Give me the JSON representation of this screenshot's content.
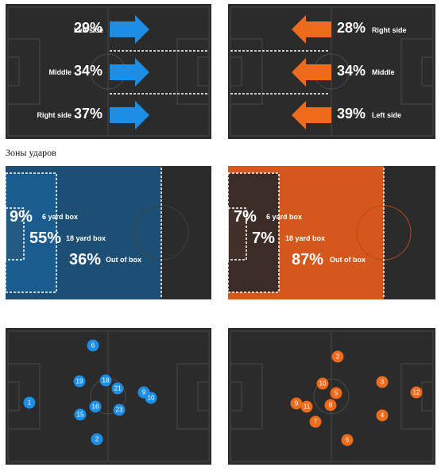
{
  "attack_sides": {
    "blue": [
      {
        "label": "Left side",
        "value": "29%"
      },
      {
        "label": "Middle",
        "value": "34%"
      },
      {
        "label": "Right side",
        "value": "37%"
      }
    ],
    "orange": [
      {
        "label": "Right side",
        "value": "28%"
      },
      {
        "label": "Middle",
        "value": "34%"
      },
      {
        "label": "Left side",
        "value": "39%"
      }
    ]
  },
  "shot_zones": {
    "title": "Зоны ударов",
    "blue": [
      {
        "label": "6 yard box",
        "value": "9%"
      },
      {
        "label": "18 yard box",
        "value": "55%"
      },
      {
        "label": "Out of box",
        "value": "36%"
      }
    ],
    "orange": [
      {
        "label": "6 yard box",
        "value": "7%"
      },
      {
        "label": "18 yard box",
        "value": "7%"
      },
      {
        "label": "Out of box",
        "value": "87%"
      }
    ]
  },
  "formations": {
    "blue": [
      "1",
      "6",
      "19",
      "18",
      "21",
      "9",
      "10",
      "16",
      "23",
      "15",
      "2"
    ],
    "orange": [
      "2",
      "10",
      "3",
      "12",
      "5",
      "9",
      "11",
      "8",
      "4",
      "7",
      "6"
    ]
  },
  "colors": {
    "blue": "#1d8ee6",
    "orange": "#ee6a1c",
    "pitch": "#2b2b2b"
  }
}
